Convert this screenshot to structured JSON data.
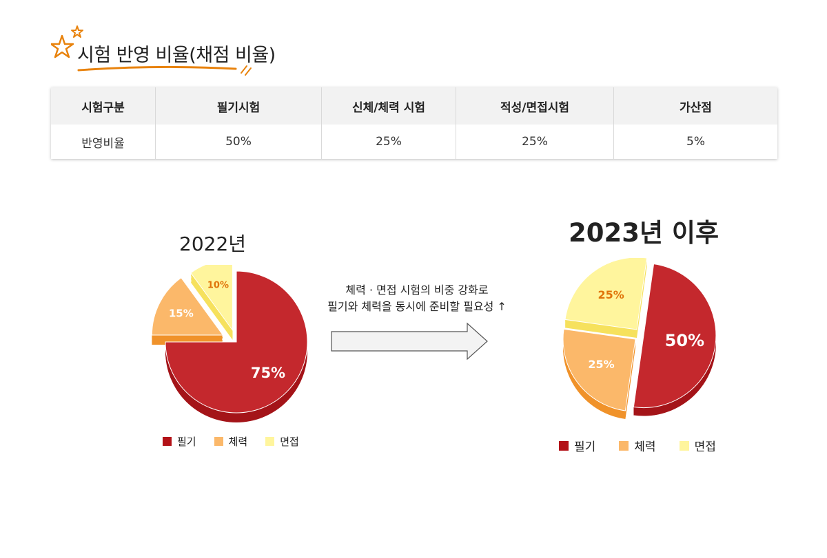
{
  "header": {
    "title": "시험 반영 비율(채점 비율)",
    "icon": "star-icon",
    "accent": "#e8820c"
  },
  "table": {
    "columns": [
      "시험구분",
      "필기시험",
      "신체/체력 시험",
      "적성/면접시험",
      "가산점"
    ],
    "rows": [
      [
        "반영비율",
        "50%",
        "25%",
        "25%",
        "5%"
      ]
    ]
  },
  "transition_note": {
    "line1": "체력 · 면접 시험의 비중 강화로",
    "line2": "필기와 체력을 동시에 준비할 필요성 ↑"
  },
  "colors": {
    "written": "#c4282d",
    "written_side": "#a41419",
    "physical": "#fbb86a",
    "physical_side": "#f0922a",
    "interview": "#fff59d",
    "interview_side": "#f6e15d"
  },
  "chart_data": [
    {
      "type": "pie",
      "title": "2022년",
      "categories": [
        "필기",
        "체력",
        "면접"
      ],
      "values": [
        75,
        15,
        10
      ],
      "labels": [
        "75%",
        "15%",
        "10%"
      ],
      "legend": [
        "필기",
        "체력",
        "면접"
      ]
    },
    {
      "type": "pie",
      "title": "2023년 이후",
      "categories": [
        "필기",
        "체력",
        "면접"
      ],
      "values": [
        50,
        25,
        25
      ],
      "labels": [
        "50%",
        "25%",
        "25%"
      ],
      "legend": [
        "필기",
        "체력",
        "면접"
      ]
    }
  ]
}
